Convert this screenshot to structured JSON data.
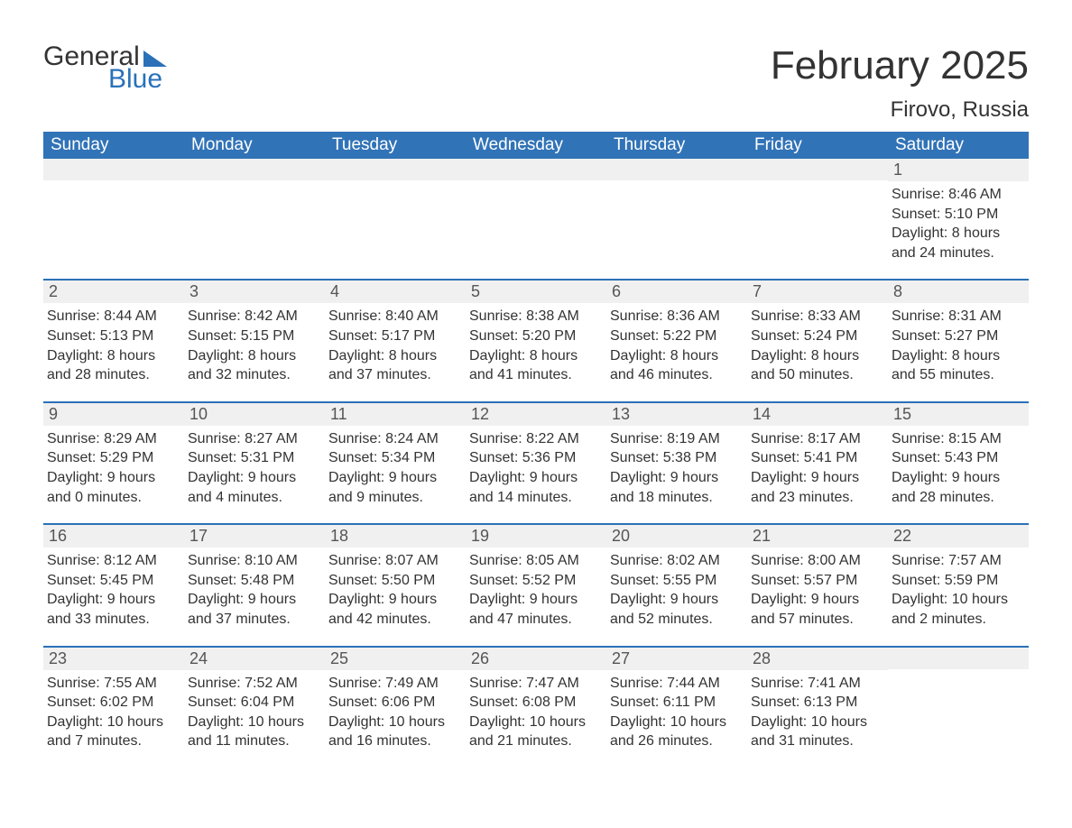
{
  "logo": {
    "word1": "General",
    "word2": "Blue",
    "triangle_color": "#2a71b8"
  },
  "title": "February 2025",
  "location": "Firovo, Russia",
  "colors": {
    "header_bg": "#3173b7",
    "header_text": "#ffffff",
    "week_border": "#2a71b8",
    "daynum_bg": "#f0f0f0",
    "body_text": "#333333",
    "logo_blue": "#2a71b8"
  },
  "day_names": [
    "Sunday",
    "Monday",
    "Tuesday",
    "Wednesday",
    "Thursday",
    "Friday",
    "Saturday"
  ],
  "weeks": [
    [
      null,
      null,
      null,
      null,
      null,
      null,
      {
        "n": "1",
        "sunrise": "8:46 AM",
        "sunset": "5:10 PM",
        "dl1": "Daylight: 8 hours",
        "dl2": "and 24 minutes."
      }
    ],
    [
      {
        "n": "2",
        "sunrise": "8:44 AM",
        "sunset": "5:13 PM",
        "dl1": "Daylight: 8 hours",
        "dl2": "and 28 minutes."
      },
      {
        "n": "3",
        "sunrise": "8:42 AM",
        "sunset": "5:15 PM",
        "dl1": "Daylight: 8 hours",
        "dl2": "and 32 minutes."
      },
      {
        "n": "4",
        "sunrise": "8:40 AM",
        "sunset": "5:17 PM",
        "dl1": "Daylight: 8 hours",
        "dl2": "and 37 minutes."
      },
      {
        "n": "5",
        "sunrise": "8:38 AM",
        "sunset": "5:20 PM",
        "dl1": "Daylight: 8 hours",
        "dl2": "and 41 minutes."
      },
      {
        "n": "6",
        "sunrise": "8:36 AM",
        "sunset": "5:22 PM",
        "dl1": "Daylight: 8 hours",
        "dl2": "and 46 minutes."
      },
      {
        "n": "7",
        "sunrise": "8:33 AM",
        "sunset": "5:24 PM",
        "dl1": "Daylight: 8 hours",
        "dl2": "and 50 minutes."
      },
      {
        "n": "8",
        "sunrise": "8:31 AM",
        "sunset": "5:27 PM",
        "dl1": "Daylight: 8 hours",
        "dl2": "and 55 minutes."
      }
    ],
    [
      {
        "n": "9",
        "sunrise": "8:29 AM",
        "sunset": "5:29 PM",
        "dl1": "Daylight: 9 hours",
        "dl2": "and 0 minutes."
      },
      {
        "n": "10",
        "sunrise": "8:27 AM",
        "sunset": "5:31 PM",
        "dl1": "Daylight: 9 hours",
        "dl2": "and 4 minutes."
      },
      {
        "n": "11",
        "sunrise": "8:24 AM",
        "sunset": "5:34 PM",
        "dl1": "Daylight: 9 hours",
        "dl2": "and 9 minutes."
      },
      {
        "n": "12",
        "sunrise": "8:22 AM",
        "sunset": "5:36 PM",
        "dl1": "Daylight: 9 hours",
        "dl2": "and 14 minutes."
      },
      {
        "n": "13",
        "sunrise": "8:19 AM",
        "sunset": "5:38 PM",
        "dl1": "Daylight: 9 hours",
        "dl2": "and 18 minutes."
      },
      {
        "n": "14",
        "sunrise": "8:17 AM",
        "sunset": "5:41 PM",
        "dl1": "Daylight: 9 hours",
        "dl2": "and 23 minutes."
      },
      {
        "n": "15",
        "sunrise": "8:15 AM",
        "sunset": "5:43 PM",
        "dl1": "Daylight: 9 hours",
        "dl2": "and 28 minutes."
      }
    ],
    [
      {
        "n": "16",
        "sunrise": "8:12 AM",
        "sunset": "5:45 PM",
        "dl1": "Daylight: 9 hours",
        "dl2": "and 33 minutes."
      },
      {
        "n": "17",
        "sunrise": "8:10 AM",
        "sunset": "5:48 PM",
        "dl1": "Daylight: 9 hours",
        "dl2": "and 37 minutes."
      },
      {
        "n": "18",
        "sunrise": "8:07 AM",
        "sunset": "5:50 PM",
        "dl1": "Daylight: 9 hours",
        "dl2": "and 42 minutes."
      },
      {
        "n": "19",
        "sunrise": "8:05 AM",
        "sunset": "5:52 PM",
        "dl1": "Daylight: 9 hours",
        "dl2": "and 47 minutes."
      },
      {
        "n": "20",
        "sunrise": "8:02 AM",
        "sunset": "5:55 PM",
        "dl1": "Daylight: 9 hours",
        "dl2": "and 52 minutes."
      },
      {
        "n": "21",
        "sunrise": "8:00 AM",
        "sunset": "5:57 PM",
        "dl1": "Daylight: 9 hours",
        "dl2": "and 57 minutes."
      },
      {
        "n": "22",
        "sunrise": "7:57 AM",
        "sunset": "5:59 PM",
        "dl1": "Daylight: 10 hours",
        "dl2": "and 2 minutes."
      }
    ],
    [
      {
        "n": "23",
        "sunrise": "7:55 AM",
        "sunset": "6:02 PM",
        "dl1": "Daylight: 10 hours",
        "dl2": "and 7 minutes."
      },
      {
        "n": "24",
        "sunrise": "7:52 AM",
        "sunset": "6:04 PM",
        "dl1": "Daylight: 10 hours",
        "dl2": "and 11 minutes."
      },
      {
        "n": "25",
        "sunrise": "7:49 AM",
        "sunset": "6:06 PM",
        "dl1": "Daylight: 10 hours",
        "dl2": "and 16 minutes."
      },
      {
        "n": "26",
        "sunrise": "7:47 AM",
        "sunset": "6:08 PM",
        "dl1": "Daylight: 10 hours",
        "dl2": "and 21 minutes."
      },
      {
        "n": "27",
        "sunrise": "7:44 AM",
        "sunset": "6:11 PM",
        "dl1": "Daylight: 10 hours",
        "dl2": "and 26 minutes."
      },
      {
        "n": "28",
        "sunrise": "7:41 AM",
        "sunset": "6:13 PM",
        "dl1": "Daylight: 10 hours",
        "dl2": "and 31 minutes."
      },
      null
    ]
  ]
}
